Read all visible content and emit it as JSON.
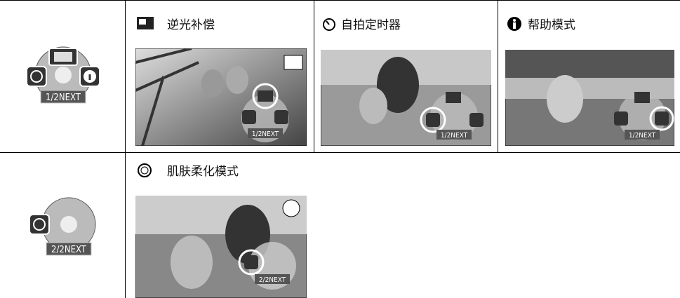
{
  "table": {
    "rows": [
      {
        "dial": {
          "label": "1/2NEXT"
        },
        "cells": [
          {
            "title": "逆光补偿",
            "photo_label": "1/2NEXT"
          },
          {
            "title": "自拍定时器",
            "photo_label": "1/2NEXT"
          },
          {
            "title": "帮助模式",
            "photo_label": "1/2NEXT"
          }
        ]
      },
      {
        "dial": {
          "label": "2/2NEXT"
        },
        "cells": [
          {
            "title": "肌肤柔化模式",
            "photo_label": "2/2NEXT"
          }
        ]
      }
    ]
  }
}
